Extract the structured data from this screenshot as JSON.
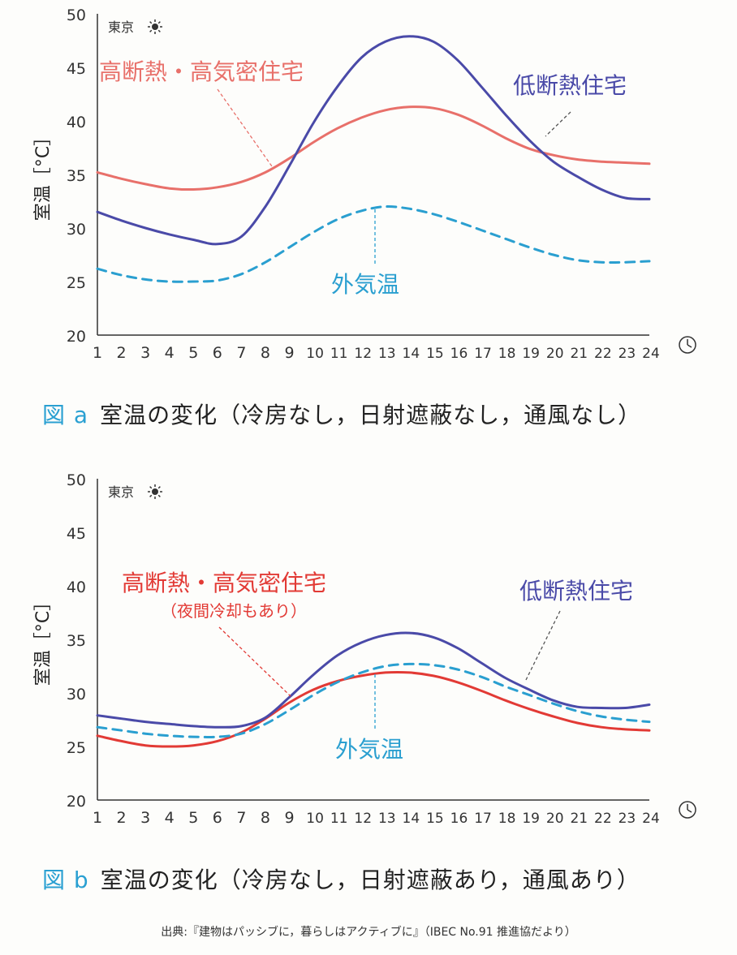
{
  "charts": [
    {
      "id": "a",
      "type": "line",
      "location": "東京",
      "caption_prefix": "図 a",
      "caption_text": "室温の変化（冷房なし，日射遮蔽なし，通風なし）",
      "ylabel": "室温［°C］",
      "ylim": [
        20,
        50
      ],
      "xlim": [
        1,
        24
      ],
      "yticks": [
        20,
        25,
        30,
        35,
        40,
        45,
        50
      ],
      "xticks": [
        1,
        2,
        3,
        4,
        5,
        6,
        7,
        8,
        9,
        10,
        11,
        12,
        13,
        14,
        15,
        16,
        17,
        18,
        19,
        20,
        21,
        22,
        23,
        24
      ],
      "x": [
        1,
        2,
        3,
        4,
        5,
        6,
        7,
        8,
        9,
        10,
        11,
        12,
        13,
        14,
        15,
        16,
        17,
        18,
        19,
        20,
        21,
        22,
        23,
        24
      ],
      "series": [
        {
          "name": "高断熱・高気密住宅",
          "subname": "",
          "color": "#e8706a",
          "dash": false,
          "width": 3,
          "values": [
            35.2,
            34.6,
            34.1,
            33.7,
            33.6,
            33.8,
            34.3,
            35.2,
            36.5,
            38.0,
            39.3,
            40.3,
            41.0,
            41.3,
            41.2,
            40.6,
            39.6,
            38.4,
            37.4,
            36.8,
            36.4,
            36.2,
            36.1,
            36.0
          ]
        },
        {
          "name": "低断熱住宅",
          "subname": "",
          "color": "#4a4aa8",
          "dash": false,
          "width": 3,
          "values": [
            31.5,
            30.7,
            30.0,
            29.4,
            28.9,
            28.5,
            29.2,
            32.0,
            35.8,
            39.8,
            43.2,
            45.9,
            47.4,
            47.9,
            47.4,
            45.7,
            43.2,
            40.6,
            38.2,
            36.2,
            34.8,
            33.6,
            32.8,
            32.7
          ]
        },
        {
          "name": "外気温",
          "subname": "",
          "color": "#2a9fd0",
          "dash": true,
          "width": 3,
          "values": [
            26.2,
            25.6,
            25.2,
            25.0,
            25.0,
            25.1,
            25.7,
            26.8,
            28.2,
            29.6,
            30.8,
            31.6,
            32.0,
            31.8,
            31.3,
            30.6,
            29.8,
            29.0,
            28.2,
            27.5,
            27.0,
            26.8,
            26.8,
            26.9
          ]
        }
      ],
      "annotations": {
        "high": "高断熱・高気密住宅",
        "high_sub": "",
        "low": "低断熱住宅",
        "outside": "外気温"
      }
    },
    {
      "id": "b",
      "type": "line",
      "location": "東京",
      "caption_prefix": "図 b",
      "caption_text": "室温の変化（冷房なし，日射遮蔽あり，通風あり）",
      "ylabel": "室温［°C］",
      "ylim": [
        20,
        50
      ],
      "xlim": [
        1,
        24
      ],
      "yticks": [
        20,
        25,
        30,
        35,
        40,
        45,
        50
      ],
      "xticks": [
        1,
        2,
        3,
        4,
        5,
        6,
        7,
        8,
        9,
        10,
        11,
        12,
        13,
        14,
        15,
        16,
        17,
        18,
        19,
        20,
        21,
        22,
        23,
        24
      ],
      "x": [
        1,
        2,
        3,
        4,
        5,
        6,
        7,
        8,
        9,
        10,
        11,
        12,
        13,
        14,
        15,
        16,
        17,
        18,
        19,
        20,
        21,
        22,
        23,
        24
      ],
      "series": [
        {
          "name": "高断熱・高気密住宅",
          "subname": "（夜間冷却もあり）",
          "color": "#e23a35",
          "dash": false,
          "width": 3,
          "values": [
            26.0,
            25.5,
            25.1,
            25.0,
            25.1,
            25.5,
            26.3,
            27.6,
            29.1,
            30.3,
            31.1,
            31.6,
            31.9,
            31.9,
            31.6,
            31.0,
            30.2,
            29.3,
            28.5,
            27.8,
            27.2,
            26.8,
            26.6,
            26.5
          ]
        },
        {
          "name": "低断熱住宅",
          "subname": "",
          "color": "#4a4aa8",
          "dash": false,
          "width": 3,
          "values": [
            27.9,
            27.6,
            27.3,
            27.1,
            26.9,
            26.8,
            26.9,
            27.7,
            29.6,
            31.7,
            33.5,
            34.7,
            35.4,
            35.6,
            35.2,
            34.2,
            32.8,
            31.4,
            30.3,
            29.3,
            28.7,
            28.6,
            28.6,
            28.9
          ]
        },
        {
          "name": "外気温",
          "subname": "",
          "color": "#2a9fd0",
          "dash": true,
          "width": 3,
          "values": [
            26.8,
            26.5,
            26.2,
            26.0,
            25.9,
            25.9,
            26.2,
            27.1,
            28.4,
            29.8,
            31.0,
            31.9,
            32.5,
            32.7,
            32.6,
            32.2,
            31.5,
            30.6,
            29.8,
            29.0,
            28.3,
            27.8,
            27.5,
            27.3
          ]
        }
      ],
      "annotations": {
        "high": "高断熱・高気密住宅",
        "high_sub": "（夜間冷却もあり）",
        "low": "低断熱住宅",
        "outside": "外気温"
      }
    }
  ],
  "source": "出典:『建物はパッシブに，暮らしはアクティブに』（IBEC No.91 推進協だより）"
}
